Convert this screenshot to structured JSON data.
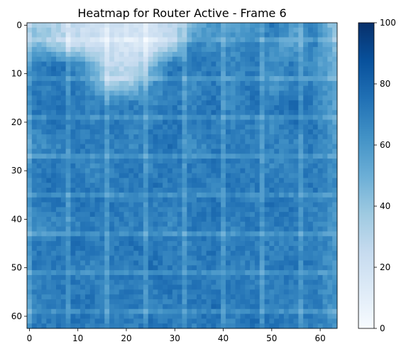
{
  "chart_data": {
    "type": "heatmap",
    "title": "Heatmap for Router Active - Frame 6",
    "xlabel": "",
    "ylabel": "",
    "cols": 64,
    "rows": 63,
    "xlim": [
      -0.5,
      63.5
    ],
    "ylim": [
      62.5,
      -0.5
    ],
    "x_ticks": [
      0,
      10,
      20,
      30,
      40,
      50,
      60
    ],
    "x_tick_labels": [
      "0",
      "10",
      "20",
      "30",
      "40",
      "50",
      "60"
    ],
    "y_ticks": [
      0,
      10,
      20,
      30,
      40,
      50,
      60
    ],
    "y_tick_labels": [
      "0",
      "10",
      "20",
      "30",
      "40",
      "50",
      "60"
    ],
    "colorbar": {
      "min": 0,
      "max": 100,
      "ticks": [
        0,
        20,
        40,
        60,
        80,
        100
      ],
      "tick_labels": [
        "0",
        "20",
        "40",
        "60",
        "80",
        "100"
      ],
      "colormap": "Blues",
      "color_low": "#f7fbff",
      "color_high": "#08306b"
    },
    "rows_coarse": [
      [
        40,
        35,
        25,
        22,
        20,
        18,
        20,
        25,
        45,
        62,
        55,
        60,
        75,
        55,
        72,
        38
      ],
      [
        48,
        42,
        28,
        22,
        20,
        18,
        18,
        30,
        70,
        62,
        65,
        72,
        62,
        55,
        70,
        45
      ],
      [
        68,
        75,
        72,
        55,
        28,
        25,
        45,
        75,
        70,
        72,
        65,
        70,
        62,
        72,
        60,
        50
      ],
      [
        72,
        70,
        72,
        65,
        35,
        42,
        62,
        70,
        65,
        72,
        62,
        75,
        60,
        70,
        68,
        55
      ],
      [
        70,
        75,
        72,
        68,
        70,
        72,
        65,
        72,
        68,
        75,
        65,
        72,
        72,
        78,
        70,
        55
      ],
      [
        68,
        72,
        75,
        70,
        72,
        68,
        70,
        75,
        70,
        72,
        68,
        70,
        65,
        75,
        72,
        58
      ],
      [
        62,
        65,
        70,
        72,
        70,
        65,
        72,
        75,
        62,
        70,
        72,
        68,
        70,
        65,
        72,
        60
      ],
      [
        72,
        70,
        72,
        65,
        70,
        72,
        68,
        72,
        70,
        75,
        68,
        72,
        65,
        72,
        70,
        62
      ],
      [
        70,
        75,
        72,
        70,
        68,
        72,
        75,
        70,
        72,
        68,
        75,
        70,
        72,
        68,
        72,
        65
      ],
      [
        68,
        72,
        70,
        75,
        72,
        70,
        68,
        72,
        70,
        75,
        72,
        70,
        75,
        72,
        70,
        62
      ],
      [
        62,
        65,
        68,
        70,
        72,
        68,
        70,
        65,
        72,
        70,
        68,
        72,
        70,
        72,
        68,
        60
      ],
      [
        72,
        70,
        75,
        72,
        70,
        75,
        72,
        70,
        68,
        75,
        70,
        72,
        68,
        70,
        72,
        62
      ],
      [
        70,
        72,
        70,
        68,
        72,
        70,
        75,
        72,
        70,
        72,
        70,
        68,
        72,
        75,
        70,
        60
      ],
      [
        68,
        70,
        72,
        70,
        68,
        72,
        70,
        75,
        72,
        70,
        72,
        70,
        68,
        72,
        70,
        62
      ],
      [
        65,
        70,
        72,
        75,
        70,
        72,
        68,
        70,
        72,
        75,
        70,
        72,
        70,
        68,
        72,
        60
      ],
      [
        70,
        72,
        75,
        70,
        72,
        68,
        75,
        72,
        70,
        72,
        68,
        75,
        72,
        70,
        68,
        62
      ]
    ]
  }
}
